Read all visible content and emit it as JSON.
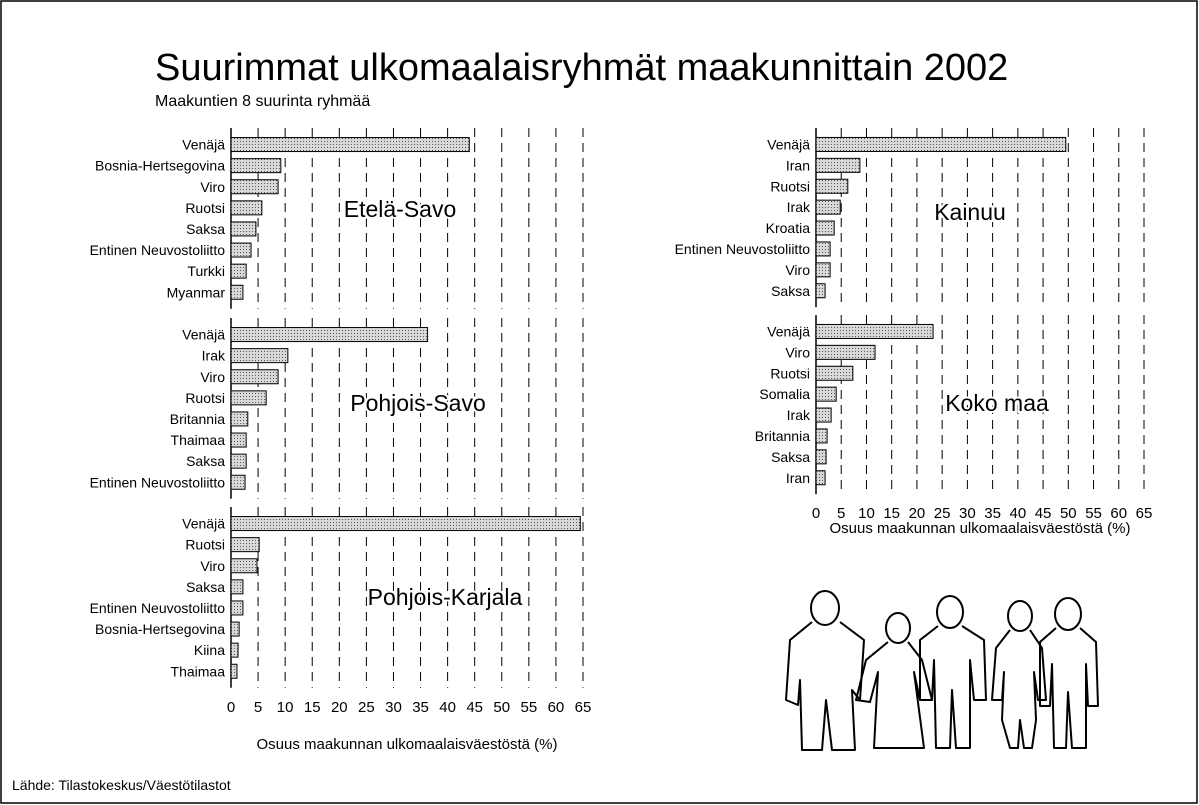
{
  "title": "Suurimmat ulkomaalaisryhmät maakunnittain 2002",
  "subtitle": "Maakuntien 8 suurinta ryhmää",
  "source": "Lähde: Tilastokeskus/Väestötilastot",
  "chart_data": [
    {
      "type": "bar",
      "orientation": "horizontal",
      "annotation": "Etelä-Savo",
      "categories": [
        "Venäjä",
        "Bosnia-Hertsegovina",
        "Viro",
        "Ruotsi",
        "Saksa",
        "Entinen Neuvostoliitto",
        "Turkki",
        "Myanmar"
      ],
      "values": [
        44,
        9.2,
        8.7,
        5.7,
        4.6,
        3.7,
        2.8,
        2.2
      ],
      "color": "#c4c4c4",
      "xlim": [
        0,
        65
      ],
      "xticks": [
        0,
        5,
        10,
        15,
        20,
        25,
        30,
        35,
        40,
        45,
        50,
        55,
        60,
        65
      ],
      "grid": true
    },
    {
      "type": "bar",
      "orientation": "horizontal",
      "annotation": "Pohjois-Savo",
      "categories": [
        "Venäjä",
        "Irak",
        "Viro",
        "Ruotsi",
        "Britannia",
        "Thaimaa",
        "Saksa",
        "Entinen Neuvostoliitto"
      ],
      "values": [
        36.3,
        10.5,
        8.7,
        6.5,
        3.1,
        2.8,
        2.8,
        2.6
      ],
      "color": "#c4c4c4",
      "xlim": [
        0,
        65
      ],
      "xticks": [
        0,
        5,
        10,
        15,
        20,
        25,
        30,
        35,
        40,
        45,
        50,
        55,
        60,
        65
      ],
      "grid": true
    },
    {
      "type": "bar",
      "orientation": "horizontal",
      "annotation": "Pohjois-Karjala",
      "categories": [
        "Venäjä",
        "Ruotsi",
        "Viro",
        "Saksa",
        "Entinen Neuvostoliitto",
        "Bosnia-Hertsegovina",
        "Kiina",
        "Thaimaa"
      ],
      "values": [
        64.5,
        5.2,
        4.8,
        2.2,
        2.2,
        1.5,
        1.3,
        1.1
      ],
      "color": "#c4c4c4",
      "xlim": [
        0,
        65
      ],
      "xticks": [
        0,
        5,
        10,
        15,
        20,
        25,
        30,
        35,
        40,
        45,
        50,
        55,
        60,
        65
      ],
      "grid": true,
      "xlabel": "Osuus maakunnan ulkomaalaisväestöstä (%)"
    },
    {
      "type": "bar",
      "orientation": "horizontal",
      "annotation": "Kainuu",
      "categories": [
        "Venäjä",
        "Iran",
        "Ruotsi",
        "Irak",
        "Kroatia",
        "Entinen Neuvostoliitto",
        "Viro",
        "Saksa"
      ],
      "values": [
        49.5,
        8.7,
        6.3,
        4.8,
        3.6,
        2.8,
        2.8,
        1.8
      ],
      "color": "#c4c4c4",
      "xlim": [
        0,
        65
      ],
      "xticks": [
        0,
        5,
        10,
        15,
        20,
        25,
        30,
        35,
        40,
        45,
        50,
        55,
        60,
        65
      ],
      "grid": true
    },
    {
      "type": "bar",
      "orientation": "horizontal",
      "annotation": "Koko maa",
      "categories": [
        "Venäjä",
        "Viro",
        "Ruotsi",
        "Somalia",
        "Irak",
        "Britannia",
        "Saksa",
        "Iran"
      ],
      "values": [
        23.2,
        11.7,
        7.3,
        4.0,
        3.0,
        2.2,
        2.0,
        1.8
      ],
      "color": "#c4c4c4",
      "xlim": [
        0,
        65
      ],
      "xticks": [
        0,
        5,
        10,
        15,
        20,
        25,
        30,
        35,
        40,
        45,
        50,
        55,
        60,
        65
      ],
      "grid": true,
      "xlabel": "Osuus maakunnan ulkomaalaisväestöstä (%)"
    }
  ]
}
